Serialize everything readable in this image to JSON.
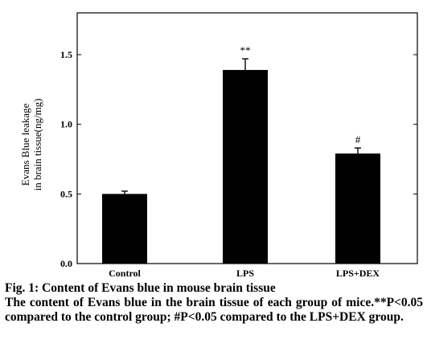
{
  "chart_data": {
    "type": "bar",
    "categories": [
      "Control",
      "LPS",
      "LPS+DEX"
    ],
    "values": [
      0.5,
      1.39,
      0.79
    ],
    "errors": [
      0.02,
      0.08,
      0.04
    ],
    "annotations": [
      "",
      "**",
      "#"
    ],
    "ylabel_lines": [
      "Evans Blue leakage",
      "in brain tissue(ng/mg)"
    ],
    "ylim": [
      0,
      1.8
    ],
    "yticks": [
      0.0,
      0.5,
      1.0,
      1.5
    ],
    "ytick_labels": [
      "0.0",
      "0.5",
      "1.0",
      "1.5"
    ],
    "bar_color": "#000000",
    "grid": false
  },
  "caption": {
    "title": "Fig. 1: Content of Evans blue in mouse brain tissue",
    "body": "The content of Evans blue in the brain tissue of each group of mice.**P<0.05 compared to the control group; #P<0.05 compared to the LPS+DEX group."
  }
}
